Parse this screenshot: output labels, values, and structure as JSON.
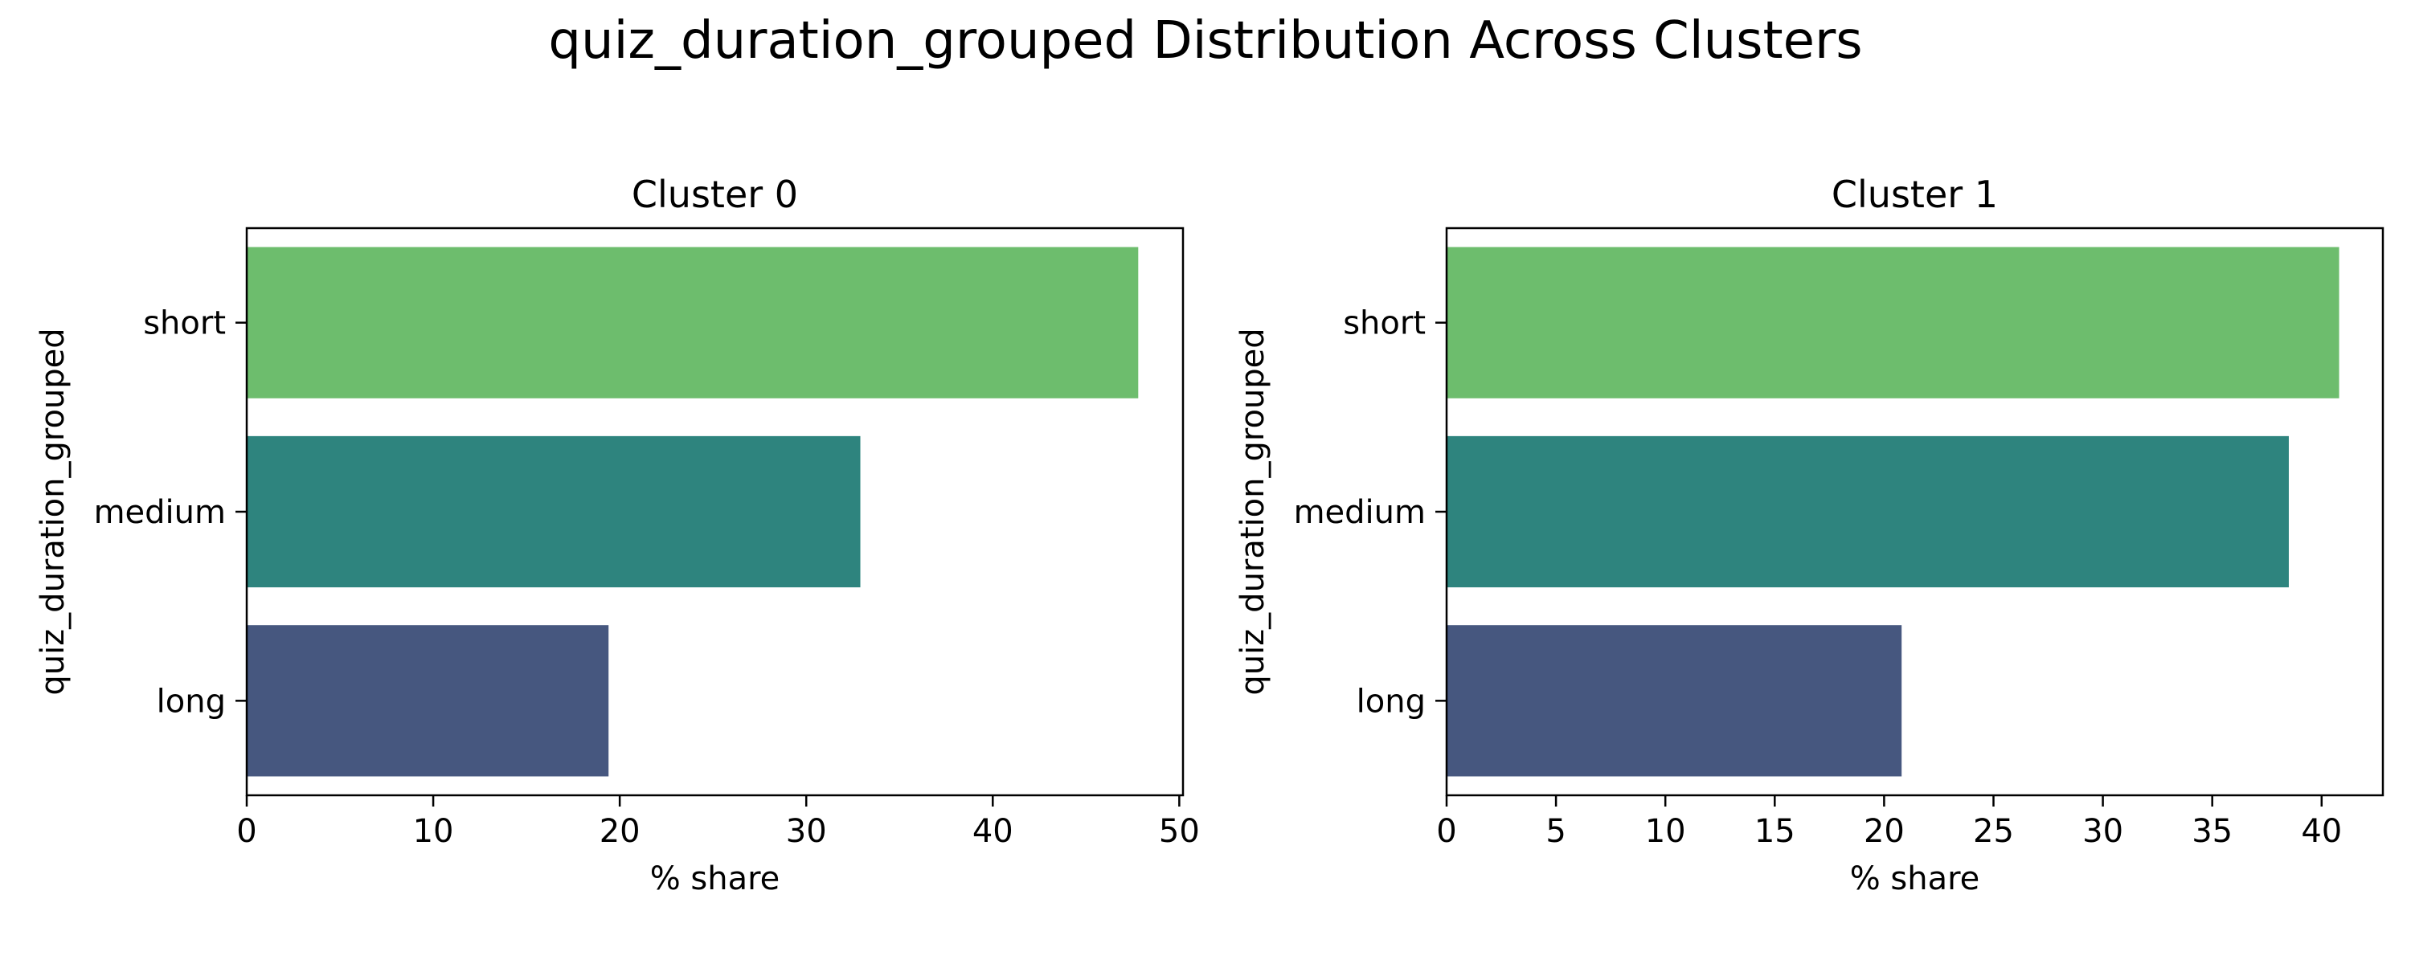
{
  "figure": {
    "title": "quiz_duration_grouped Distribution Across Clusters"
  },
  "chart_data": [
    {
      "type": "bar",
      "orientation": "horizontal",
      "title": "Cluster 0",
      "xlabel": "% share",
      "ylabel": "quiz_duration_grouped",
      "categories": [
        "short",
        "medium",
        "long"
      ],
      "values": [
        47.8,
        32.9,
        19.4
      ],
      "colors": [
        "#6dbd6d",
        "#2e847e",
        "#46577f"
      ],
      "xlim": [
        0,
        50.2
      ],
      "xticks": [
        0,
        10,
        20,
        30,
        40,
        50
      ],
      "grid": false,
      "legend": "none"
    },
    {
      "type": "bar",
      "orientation": "horizontal",
      "title": "Cluster 1",
      "xlabel": "% share",
      "ylabel": "quiz_duration_grouped",
      "categories": [
        "short",
        "medium",
        "long"
      ],
      "values": [
        40.8,
        38.5,
        20.8
      ],
      "colors": [
        "#6dbd6d",
        "#2e847e",
        "#46577f"
      ],
      "xlim": [
        0,
        42.8
      ],
      "xticks": [
        0,
        5,
        10,
        15,
        20,
        25,
        30,
        35,
        40
      ],
      "grid": false,
      "legend": "none"
    }
  ]
}
